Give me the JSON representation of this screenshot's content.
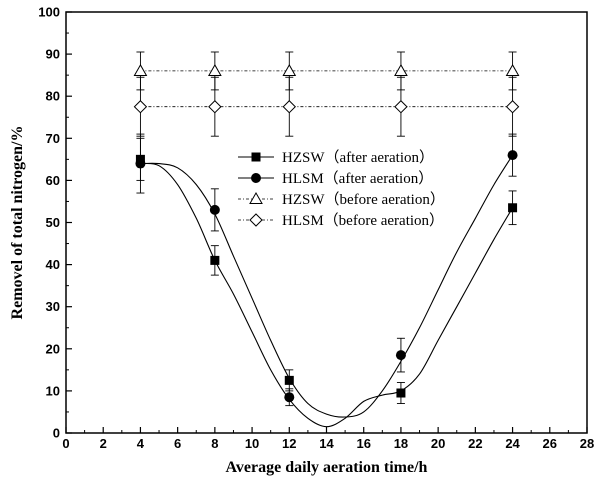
{
  "chart_data": {
    "type": "scatter",
    "xlabel": "Average daily aeration time/h",
    "ylabel": "Removel of total nitrogen/%",
    "xlim": [
      0,
      28
    ],
    "ylim": [
      0,
      100
    ],
    "xticks": [
      0,
      2,
      4,
      6,
      8,
      10,
      12,
      14,
      16,
      18,
      20,
      22,
      24,
      26,
      28
    ],
    "yticks": [
      0,
      10,
      20,
      30,
      40,
      50,
      60,
      70,
      80,
      90,
      100
    ],
    "grid": false,
    "legend_position": "center",
    "series": [
      {
        "name": "HZSW（after aeration）",
        "marker": "square-filled",
        "line": "smooth-fit",
        "x": [
          4,
          8,
          12,
          18,
          24
        ],
        "y": [
          65,
          41,
          12.5,
          9.5,
          53.5
        ],
        "error": [
          5,
          3.5,
          2.5,
          2.5,
          4
        ]
      },
      {
        "name": "HLSM（after aeration）",
        "marker": "circle-filled",
        "line": "smooth-fit",
        "x": [
          4,
          8,
          12,
          18,
          24
        ],
        "y": [
          64,
          53,
          8.5,
          18.5,
          66
        ],
        "error": [
          7,
          5,
          2,
          4,
          5
        ]
      },
      {
        "name": "HZSW（before aeration）",
        "marker": "triangle-open",
        "line": "dash-dot",
        "x": [
          4,
          8,
          12,
          18,
          24
        ],
        "y": [
          86,
          86,
          86,
          86,
          86
        ],
        "error": [
          4.5,
          4.5,
          4.5,
          4.5,
          4.5
        ]
      },
      {
        "name": "HLSM（before aeration）",
        "marker": "diamond-open",
        "line": "dash-dot",
        "x": [
          4,
          8,
          12,
          18,
          24
        ],
        "y": [
          77.5,
          77.5,
          77.5,
          77.5,
          77.5
        ],
        "error": [
          7,
          7,
          7,
          7,
          7
        ]
      }
    ],
    "fit_curves": [
      {
        "series": "HZSW（after aeration）",
        "x": [
          4,
          5,
          6,
          7,
          8,
          9,
          10,
          11,
          12,
          13,
          14,
          15,
          16,
          17,
          18,
          19,
          20,
          21,
          22,
          23,
          24
        ],
        "y": [
          64,
          63.5,
          59,
          51,
          41,
          33,
          24,
          15,
          8,
          3.5,
          1.5,
          3.5,
          7.5,
          9,
          10,
          14,
          22,
          30,
          38,
          46,
          53.5
        ]
      },
      {
        "series": "HLSM（after aeration）",
        "x": [
          4,
          5,
          6,
          7,
          8,
          9,
          10,
          11,
          12,
          13,
          14,
          15,
          16,
          17,
          18,
          19,
          20,
          21,
          22,
          23,
          24
        ],
        "y": [
          64,
          64,
          63,
          59,
          52,
          42,
          32,
          22,
          13,
          7,
          4.5,
          3.8,
          5,
          10,
          17,
          25,
          34,
          43,
          51,
          59,
          66
        ]
      }
    ]
  }
}
